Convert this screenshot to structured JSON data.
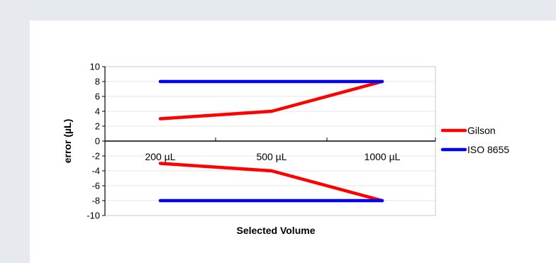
{
  "chart_data": {
    "type": "line",
    "categories": [
      "200 µL",
      "500 µL",
      "1000 µL"
    ],
    "ylim": [
      -10,
      10
    ],
    "yticks": [
      10,
      8,
      6,
      4,
      2,
      0,
      -2,
      -4,
      -6,
      -8,
      -10
    ],
    "xlabel": "Selected Volume",
    "ylabel": "error (µL)",
    "grid": true,
    "legend_placement": "right",
    "series": [
      {
        "name": "Gilson",
        "color": "#ff0000",
        "values": [
          3,
          4,
          8
        ]
      },
      {
        "name": "",
        "color": "#ff0000",
        "values": [
          -3,
          -4,
          -8
        ]
      },
      {
        "name": "ISO 8655",
        "color": "#0000ff",
        "values": [
          8,
          8,
          8
        ]
      },
      {
        "name": "",
        "color": "#0000ff",
        "values": [
          -8,
          -8,
          -8
        ]
      }
    ]
  }
}
